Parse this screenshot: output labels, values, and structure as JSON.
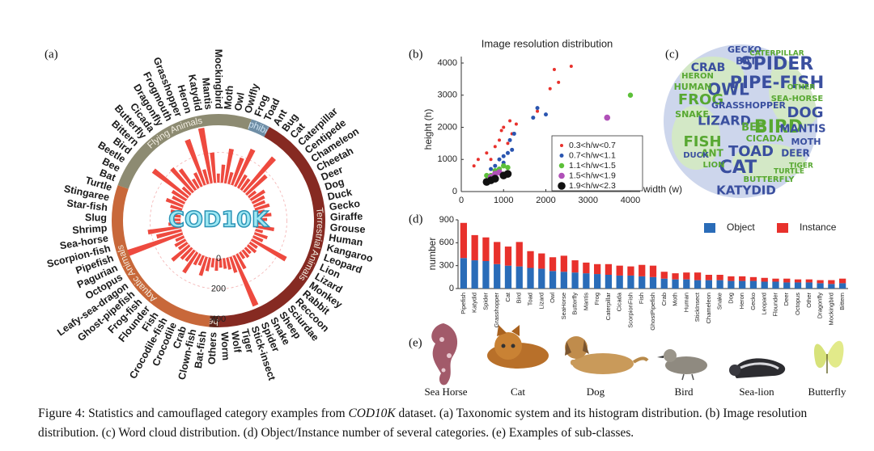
{
  "chart_data": [
    {
      "type": "polar_bar",
      "panel_label": "(a)",
      "center_text": "COD10K",
      "color": "#ee4a3f",
      "rlim": [
        0,
        400
      ],
      "rticks": [
        0,
        200,
        400
      ],
      "groups": [
        {
          "name": "Flying Animals",
          "color": "#8d8b72",
          "categories": [
            "Bat",
            "Bee",
            "Beetle",
            "Bird",
            "Bittern",
            "Butterfly",
            "Cicada",
            "Dragonfly",
            "Frogmouth",
            "Grasshopper",
            "Heron",
            "Katydid",
            "Mantis",
            "Mockingbird",
            "Moth",
            "Owl",
            "Owlfly"
          ],
          "values": [
            120,
            90,
            110,
            290,
            70,
            210,
            170,
            70,
            100,
            320,
            100,
            370,
            200,
            60,
            120,
            230,
            80
          ]
        },
        {
          "name": "Amphibians",
          "color": "#6f8ea6",
          "categories": [
            "Frog",
            "Toad"
          ],
          "values": [
            190,
            270
          ]
        },
        {
          "name": "Terrestrial Animals",
          "color": "#862a22",
          "categories": [
            "Ant",
            "Bug",
            "Cat",
            "Caterpillar",
            "Centipede",
            "Chameleon",
            "Cheetah",
            "Deer",
            "Dog",
            "Duck",
            "Gecko",
            "Giraffe",
            "Grouse",
            "Human",
            "Kangaroo",
            "Leopard",
            "Lion",
            "Lizard",
            "Monkey",
            "Rabbit",
            "Reccoon",
            "Sciurdae",
            "Sheep",
            "Snake",
            "Spider",
            "Stick-insect",
            "Tiger",
            "Wolf",
            "Worm"
          ],
          "values": [
            100,
            90,
            300,
            180,
            60,
            110,
            90,
            80,
            100,
            60,
            100,
            70,
            60,
            120,
            50,
            90,
            70,
            260,
            60,
            70,
            50,
            60,
            50,
            110,
            360,
            110,
            80,
            70,
            60
          ]
        },
        {
          "name": "Others",
          "color": "#5e2419",
          "categories": [
            "Others"
          ],
          "values": [
            80
          ]
        },
        {
          "name": "Aquatic Animals",
          "color": "#c8683a",
          "categories": [
            "Bat-fish",
            "Clown-fish",
            "Crab",
            "Crocodile",
            "Crocodile-fish",
            "Fish",
            "Flounder",
            "Frog-fish",
            "Ghost-pipefish",
            "Leafy-sea-dragon",
            "Octopus",
            "Pagurian",
            "Pipefish",
            "Scorpion-fish",
            "Sea-horse",
            "Shrimp",
            "Slug",
            "Star-fish",
            "Stingaree",
            "Turtle"
          ],
          "values": [
            60,
            90,
            130,
            70,
            80,
            160,
            90,
            100,
            150,
            70,
            80,
            60,
            400,
            170,
            220,
            80,
            60,
            50,
            70,
            80
          ]
        }
      ]
    },
    {
      "type": "scatter",
      "panel_label": "(b)",
      "title": "Image resolution distribution",
      "xlabel": "width (w)",
      "ylabel": "height (h)",
      "xlim": [
        0,
        4000
      ],
      "ylim": [
        0,
        4000
      ],
      "xticks": [
        0,
        1000,
        2000,
        3000,
        4000
      ],
      "yticks": [
        0,
        1000,
        2000,
        3000,
        4000
      ],
      "series": [
        {
          "name": "0.3<h/w<0.7",
          "color": "#e8312c",
          "x": [
            2600,
            2200,
            2300,
            2100,
            1800,
            1300,
            1200,
            1000,
            900,
            800,
            600,
            400,
            700,
            1100,
            300,
            1150,
            950
          ],
          "values": [
            3900,
            3800,
            3400,
            3200,
            2500,
            2100,
            1800,
            2000,
            1600,
            1400,
            1200,
            1000,
            1000,
            1500,
            800,
            2200,
            1900
          ]
        },
        {
          "name": "0.7<h/w<1.1",
          "color": "#2a55b0",
          "x": [
            1700,
            1800,
            2000,
            1200,
            1100,
            1000,
            900,
            800,
            1250,
            700,
            1000,
            1150
          ],
          "values": [
            2300,
            2600,
            2400,
            1300,
            1200,
            1100,
            1000,
            800,
            1800,
            700,
            900,
            1600
          ]
        },
        {
          "name": "1.1<h/w<1.5",
          "color": "#5cc039",
          "x": [
            4000,
            900,
            1000,
            800,
            700,
            1100,
            600
          ],
          "values": [
            3000,
            700,
            800,
            650,
            500,
            750,
            500
          ]
        },
        {
          "name": "1.5<h/w<1.9",
          "color": "#b050b8",
          "x": [
            3450,
            800,
            900,
            700
          ],
          "values": [
            2300,
            550,
            600,
            450
          ]
        },
        {
          "name": "1.9<h/w<2.3",
          "color": "#111111",
          "x": [
            700,
            800,
            1000,
            600,
            1100
          ],
          "values": [
            350,
            400,
            500,
            300,
            550
          ]
        }
      ]
    },
    {
      "type": "bar",
      "stacked": true,
      "panel_label": "(d)",
      "ylabel": "number",
      "legend": "top-right",
      "ylim": [
        0,
        900
      ],
      "yticks": [
        0,
        300,
        600,
        900
      ],
      "categories": [
        "Pipefish",
        "Katydid",
        "Spider",
        "Grasshopper",
        "Cat",
        "Bird",
        "Toad",
        "Lizard",
        "Owl",
        "SeaHorse",
        "Butterfly",
        "Mantis",
        "Frog",
        "Caterpillar",
        "Cicada",
        "ScorpionFish",
        "Fish",
        "GhostPipefish",
        "Crab",
        "Moth",
        "Human",
        "StickInsect",
        "Chameleon",
        "Snake",
        "Dog",
        "Heron",
        "Gecko",
        "Leopard",
        "Flounder",
        "Deer",
        "Octopus",
        "Other",
        "Dragonfly",
        "Mockingbird",
        "Bittern"
      ],
      "series": [
        {
          "name": "Object",
          "color": "#2a6cb8",
          "values": [
            400,
            370,
            360,
            320,
            300,
            290,
            270,
            260,
            230,
            220,
            210,
            200,
            190,
            180,
            170,
            170,
            160,
            150,
            130,
            120,
            120,
            110,
            110,
            110,
            100,
            100,
            100,
            90,
            90,
            80,
            80,
            80,
            70,
            60,
            70
          ]
        },
        {
          "name": "Instance",
          "color": "#e8312c",
          "values": [
            460,
            330,
            310,
            290,
            250,
            320,
            220,
            200,
            180,
            210,
            160,
            140,
            130,
            140,
            130,
            120,
            150,
            150,
            90,
            80,
            90,
            100,
            70,
            70,
            60,
            60,
            50,
            50,
            40,
            50,
            40,
            40,
            40,
            50,
            60
          ]
        }
      ]
    }
  ],
  "word_cloud": {
    "panel_label": "(c)",
    "words": [
      {
        "text": "SPIDER",
        "color": "#3a4f9f"
      },
      {
        "text": "PIPE-FISH",
        "color": "#3a4f9f"
      },
      {
        "text": "OWL",
        "color": "#3a4f9f"
      },
      {
        "text": "FROG",
        "color": "#58a832"
      },
      {
        "text": "LIZARD",
        "color": "#3a4f9f"
      },
      {
        "text": "BIRD",
        "color": "#58a832"
      },
      {
        "text": "DOG",
        "color": "#3a4f9f"
      },
      {
        "text": "FISH",
        "color": "#58a832"
      },
      {
        "text": "TOAD",
        "color": "#3a4f9f"
      },
      {
        "text": "CAT",
        "color": "#3a4f9f"
      },
      {
        "text": "KATYDID",
        "color": "#3a4f9f"
      },
      {
        "text": "MANTIS",
        "color": "#3a4f9f"
      },
      {
        "text": "CRAB",
        "color": "#3a4f9f"
      },
      {
        "text": "BAT",
        "color": "#3a4f9f"
      },
      {
        "text": "GECKO",
        "color": "#3a4f9f"
      },
      {
        "text": "HUMAN",
        "color": "#58a832"
      },
      {
        "text": "SNAKE",
        "color": "#58a832"
      },
      {
        "text": "GRASSHOPPER",
        "color": "#3a4f9f"
      },
      {
        "text": "BEE",
        "color": "#58a832"
      },
      {
        "text": "CICADA",
        "color": "#58a832"
      },
      {
        "text": "DEER",
        "color": "#3a4f9f"
      },
      {
        "text": "MOTH",
        "color": "#3a4f9f"
      },
      {
        "text": "BUTTERFLY",
        "color": "#58a832"
      },
      {
        "text": "SEA-HORSE",
        "color": "#58a832"
      },
      {
        "text": "CATERPILLAR",
        "color": "#58a832"
      },
      {
        "text": "LION",
        "color": "#58a832"
      },
      {
        "text": "HERON",
        "color": "#58a832"
      },
      {
        "text": "ANT",
        "color": "#58a832"
      },
      {
        "text": "TIGER",
        "color": "#58a832"
      },
      {
        "text": "DUCK",
        "color": "#3a4f9f"
      },
      {
        "text": "TURTLE",
        "color": "#58a832"
      },
      {
        "text": "OTHER",
        "color": "#58a832"
      }
    ]
  },
  "examples": {
    "panel_label": "(e)",
    "items": [
      "Sea Horse",
      "Cat",
      "Dog",
      "Bird",
      "Sea-lion",
      "Butterfly"
    ]
  },
  "caption": {
    "label": "Figure 4:",
    "text_1": "Statistics and camouflaged category examples from",
    "emphasis": "COD10K",
    "text_2": "dataset. (a) Taxonomic system and its histogram distribution. (b) Image resolution distribution. (c) Word cloud distribution. (d) Object/Instance number of several categories. (e) Examples of sub-classes."
  }
}
